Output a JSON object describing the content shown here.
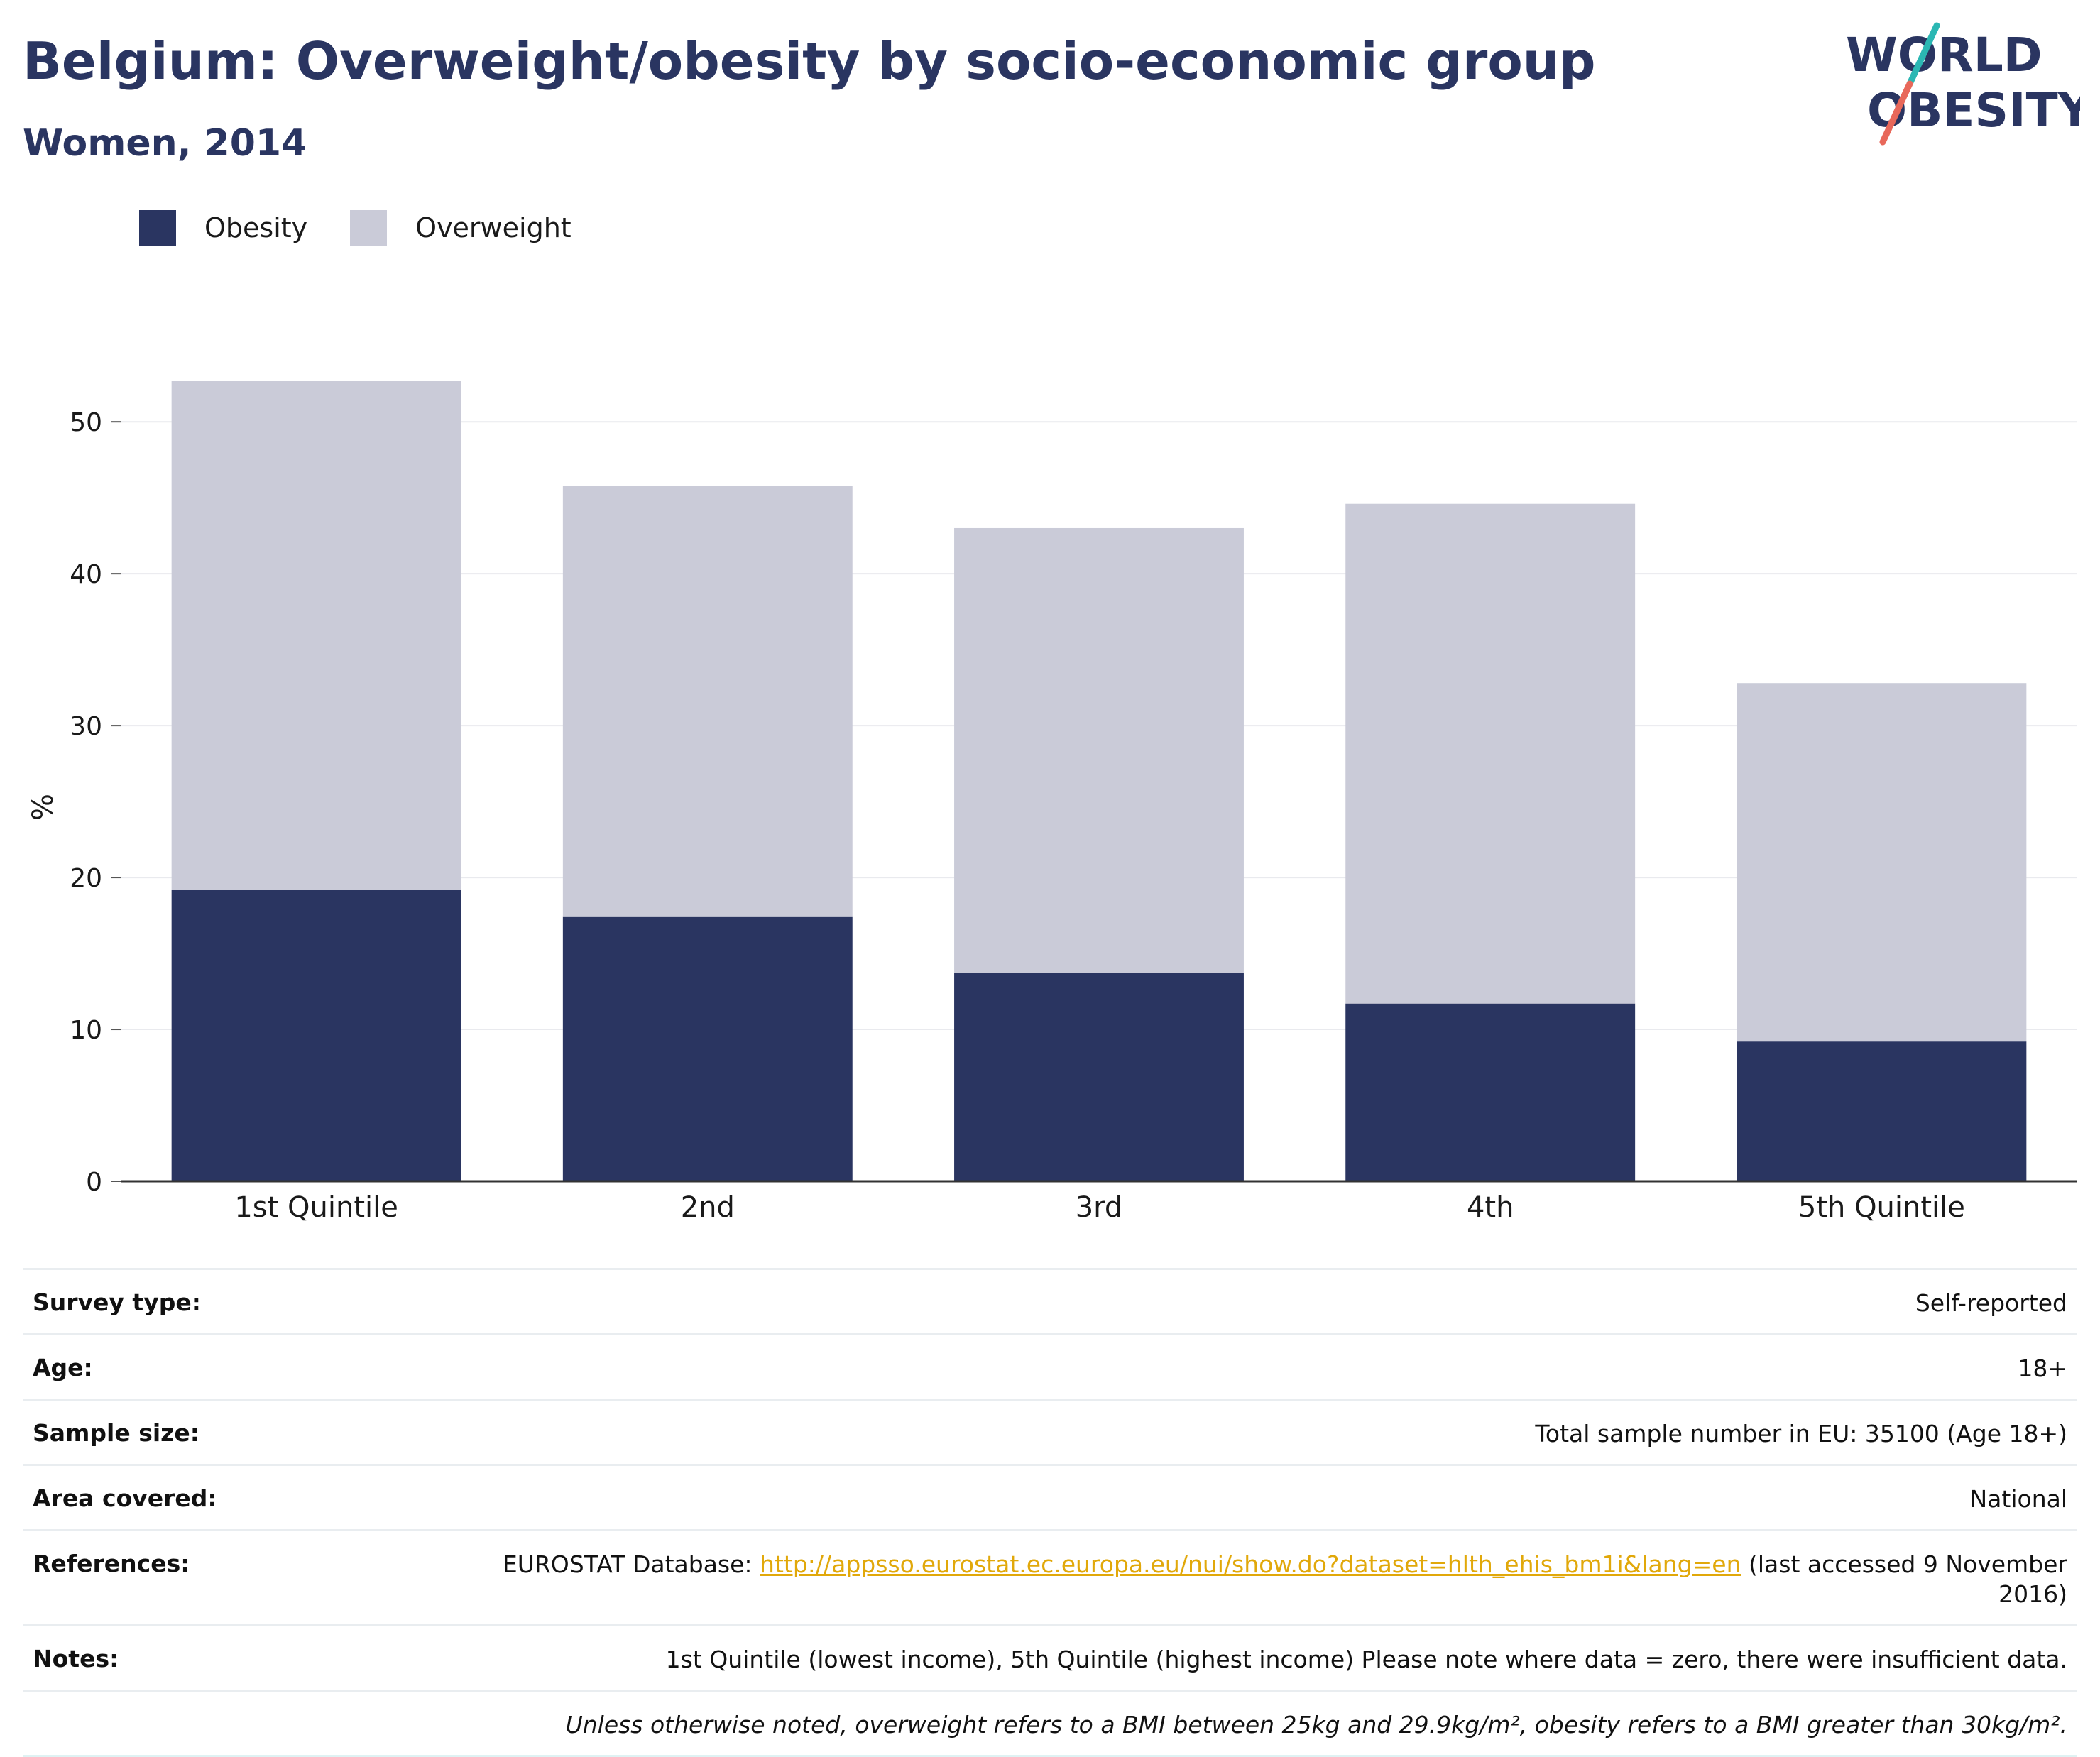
{
  "header": {
    "title": "Belgium: Overweight/obesity by socio-economic group",
    "subtitle": "Women, 2014"
  },
  "logo": {
    "line1": "WORLD",
    "line2": "OBESITY",
    "text_color": "#2a3561",
    "slash_colors": [
      "#2bb7b3",
      "#e8685a"
    ]
  },
  "legend": {
    "items": [
      {
        "label": "Obesity",
        "color": "#2a3561"
      },
      {
        "label": "Overweight",
        "color": "#cacbd8"
      }
    ]
  },
  "chart_data": {
    "type": "bar",
    "stacked": true,
    "title": "Belgium: Overweight/obesity by socio-economic group",
    "subtitle": "Women, 2014",
    "categories": [
      "1st Quintile",
      "2nd",
      "3rd",
      "4th",
      "5th Quintile"
    ],
    "series": [
      {
        "name": "Obesity",
        "color": "#2a3561",
        "values": [
          19.2,
          17.4,
          13.7,
          11.7,
          9.2
        ]
      },
      {
        "name": "Overweight",
        "color": "#cacbd8",
        "values": [
          33.5,
          28.4,
          29.3,
          32.9,
          23.6
        ]
      }
    ],
    "xlabel": "",
    "ylabel": "%",
    "ylim": [
      0,
      53
    ],
    "yticks": [
      0,
      10,
      20,
      30,
      40,
      50
    ],
    "grid": true,
    "legend_position": "top-left"
  },
  "meta": {
    "rows": [
      {
        "key": "Survey type:",
        "value": "Self-reported"
      },
      {
        "key": "Age:",
        "value": "18+"
      },
      {
        "key": "Sample size:",
        "value": "Total sample number in EU: 35100 (Age 18+)"
      },
      {
        "key": "Area covered:",
        "value": "National"
      }
    ],
    "references": {
      "key": "References:",
      "prefix": "EUROSTAT Database: ",
      "link": "http://appsso.eurostat.ec.europa.eu/nui/show.do?dataset=hlth_ehis_bm1i&lang=en",
      "suffix": " (last accessed 9 November 2016)"
    },
    "notes": {
      "key": "Notes:",
      "value": "1st Quintile (lowest income), 5th Quintile (highest income) Please note where data = zero, there were insufficient data."
    },
    "definition": "Unless otherwise noted, overweight refers to a BMI between 25kg and 29.9kg/m², obesity refers to a BMI greater than 30kg/m²."
  }
}
